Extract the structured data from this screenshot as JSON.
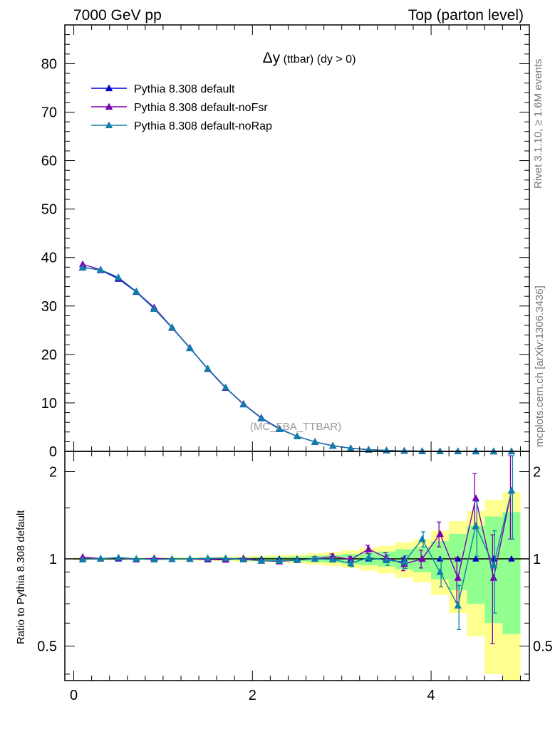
{
  "header": {
    "left": "7000 GeV pp",
    "right": "Top (parton level)"
  },
  "side": {
    "rivet": "Rivet 3.1.10, ≥ 1.6M events",
    "mcplots": "mcplots.cern.ch [arXiv:1306.3436]"
  },
  "chart_data": [
    {
      "type": "line",
      "title_symbol": "Δy",
      "title_rest": " (ttbar) (dy > 0)",
      "watermark": "(MC_FBA_TTBAR)",
      "xlabel": "",
      "ylabel": "",
      "xlim": [
        -0.1,
        5.1
      ],
      "ylim": [
        0,
        88
      ],
      "y_ticks": [
        0,
        10,
        20,
        30,
        40,
        50,
        60,
        70,
        80
      ],
      "y_tick_labels": [
        "0",
        "10",
        "20",
        "30",
        "40",
        "50",
        "60",
        "70",
        "80"
      ],
      "x": [
        0.1,
        0.3,
        0.5,
        0.7,
        0.9,
        1.1,
        1.3,
        1.5,
        1.7,
        1.9,
        2.1,
        2.3,
        2.5,
        2.7,
        2.9,
        3.1,
        3.3,
        3.5,
        3.7,
        3.9,
        4.1,
        4.3,
        4.5,
        4.7,
        4.9
      ],
      "series": [
        {
          "name": "Pythia 8.308 default",
          "color": "#0000cc",
          "values": [
            38.0,
            37.4,
            35.6,
            32.9,
            29.4,
            25.5,
            21.3,
            17.0,
            13.1,
            9.7,
            6.9,
            4.7,
            3.1,
            1.95,
            1.15,
            0.65,
            0.35,
            0.18,
            0.09,
            0.045,
            0.022,
            0.011,
            0.006,
            0.003,
            0.0015
          ]
        },
        {
          "name": "Pythia 8.308 default-noFsr",
          "color": "#7b00b4",
          "values": [
            38.6,
            37.5,
            35.8,
            33.0,
            29.7,
            25.6,
            21.4,
            17.0,
            13.1,
            9.8,
            6.9,
            4.6,
            3.1,
            1.96,
            1.17,
            0.65,
            0.37,
            0.18,
            0.09,
            0.045,
            0.026,
            0.01,
            0.01,
            0.0026,
            0.0026
          ]
        },
        {
          "name": "Pythia 8.308 default-noRap",
          "color": "#0e7fa8",
          "values": [
            37.9,
            37.5,
            35.9,
            33.0,
            29.4,
            25.6,
            21.3,
            17.1,
            13.2,
            9.7,
            6.8,
            4.6,
            3.1,
            1.95,
            1.15,
            0.63,
            0.35,
            0.18,
            0.088,
            0.053,
            0.02,
            0.0077,
            0.008,
            0.0029,
            0.0026
          ]
        }
      ]
    },
    {
      "type": "line",
      "ylabel": "Ratio to Pythia 8.308 default",
      "xlim": [
        -0.1,
        5.1
      ],
      "ylim": [
        0.38,
        2.35
      ],
      "yscale": "log",
      "x_ticks": [
        0,
        2,
        4
      ],
      "x_tick_labels": [
        "0",
        "2",
        "4"
      ],
      "y_ticks": [
        0.5,
        1,
        2
      ],
      "y_tick_labels": [
        "0.5",
        "1",
        "2"
      ],
      "x": [
        0.1,
        0.3,
        0.5,
        0.7,
        0.9,
        1.1,
        1.3,
        1.5,
        1.7,
        1.9,
        2.1,
        2.3,
        2.5,
        2.7,
        2.9,
        3.1,
        3.3,
        3.5,
        3.7,
        3.9,
        4.1,
        4.3,
        4.5,
        4.7,
        4.9
      ],
      "band_x_edges": [
        0.0,
        0.2,
        0.4,
        0.6,
        0.8,
        1.0,
        1.2,
        1.4,
        1.6,
        1.8,
        2.0,
        2.2,
        2.4,
        2.6,
        2.8,
        3.0,
        3.2,
        3.4,
        3.6,
        3.8,
        4.0,
        4.2,
        4.4,
        4.6,
        4.8,
        5.0
      ],
      "band_inner": [
        0.006,
        0.006,
        0.006,
        0.006,
        0.006,
        0.007,
        0.007,
        0.008,
        0.01,
        0.012,
        0.014,
        0.016,
        0.02,
        0.025,
        0.03,
        0.04,
        0.05,
        0.06,
        0.08,
        0.1,
        0.15,
        0.22,
        0.3,
        0.4,
        0.45
      ],
      "band_outer": [
        0.01,
        0.01,
        0.01,
        0.01,
        0.01,
        0.012,
        0.013,
        0.015,
        0.018,
        0.022,
        0.026,
        0.03,
        0.035,
        0.045,
        0.055,
        0.07,
        0.09,
        0.11,
        0.14,
        0.17,
        0.25,
        0.35,
        0.46,
        0.6,
        0.7
      ],
      "band_colors": {
        "inner": "#90ff90",
        "outer": "#ffff90"
      },
      "reference_line": 1.0,
      "series": [
        {
          "name": "Pythia 8.308 default-noFsr",
          "color": "#7b00b4",
          "values": [
            1.015,
            1.002,
            1.008,
            0.995,
            1.005,
            0.998,
            0.999,
            0.995,
            0.993,
            1.005,
            0.985,
            0.98,
            0.99,
            1.0,
            1.02,
            0.995,
            1.08,
            1.01,
            0.96,
            1.0,
            1.22,
            0.86,
            1.62,
            0.86,
            1.72
          ],
          "errors": [
            0.005,
            0.005,
            0.005,
            0.005,
            0.005,
            0.005,
            0.006,
            0.007,
            0.008,
            0.01,
            0.012,
            0.012,
            0.014,
            0.016,
            0.02,
            0.025,
            0.035,
            0.04,
            0.05,
            0.07,
            0.12,
            0.15,
            0.35,
            0.35,
            0.55
          ]
        },
        {
          "name": "Pythia 8.308 default-noRap",
          "color": "#0e7fa8",
          "values": [
            0.995,
            1.002,
            1.01,
            1.0,
            0.995,
            0.998,
            1.0,
            1.005,
            1.005,
            0.995,
            0.985,
            0.985,
            0.99,
            1.0,
            0.995,
            0.965,
            1.01,
            0.99,
            0.975,
            1.17,
            0.9,
            0.69,
            1.3,
            0.95,
            1.72
          ],
          "errors": [
            0.005,
            0.005,
            0.005,
            0.005,
            0.005,
            0.005,
            0.006,
            0.007,
            0.008,
            0.01,
            0.012,
            0.012,
            0.014,
            0.016,
            0.02,
            0.025,
            0.03,
            0.04,
            0.05,
            0.07,
            0.1,
            0.12,
            0.28,
            0.3,
            0.55
          ]
        }
      ]
    }
  ]
}
